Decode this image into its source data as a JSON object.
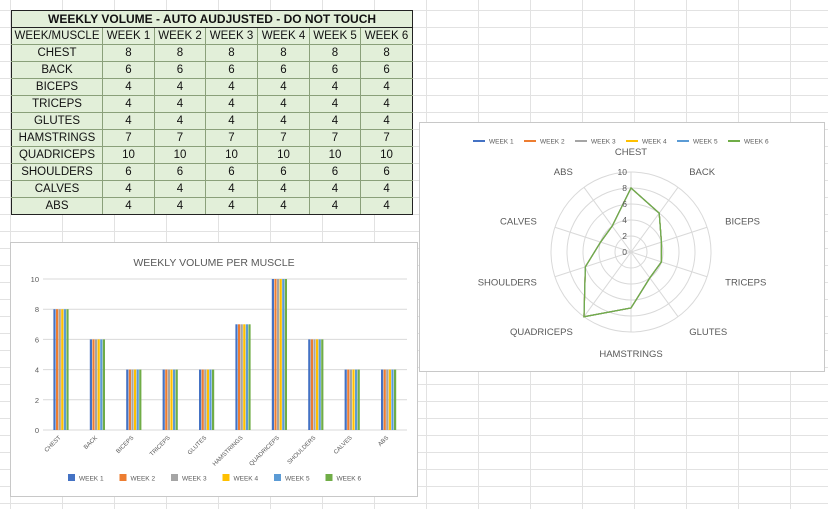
{
  "table": {
    "title": "WEEKLY VOLUME - AUTO AUDJUSTED - DO NOT TOUCH",
    "corner_header": "WEEK/MUSCLE",
    "columns": [
      "WEEK 1",
      "WEEK 2",
      "WEEK 3",
      "WEEK 4",
      "WEEK 5",
      "WEEK 6"
    ],
    "rows": [
      {
        "muscle": "CHEST",
        "values": [
          "8",
          "8",
          "8",
          "8",
          "8",
          "8"
        ]
      },
      {
        "muscle": "BACK",
        "values": [
          "6",
          "6",
          "6",
          "6",
          "6",
          "6"
        ]
      },
      {
        "muscle": "BICEPS",
        "values": [
          "4",
          "4",
          "4",
          "4",
          "4",
          "4"
        ]
      },
      {
        "muscle": "TRICEPS",
        "values": [
          "4",
          "4",
          "4",
          "4",
          "4",
          "4"
        ]
      },
      {
        "muscle": "GLUTES",
        "values": [
          "4",
          "4",
          "4",
          "4",
          "4",
          "4"
        ]
      },
      {
        "muscle": "HAMSTRINGS",
        "values": [
          "7",
          "7",
          "7",
          "7",
          "7",
          "7"
        ]
      },
      {
        "muscle": "QUADRICEPS",
        "values": [
          "10",
          "10",
          "10",
          "10",
          "10",
          "10"
        ]
      },
      {
        "muscle": "SHOULDERS",
        "values": [
          "6",
          "6",
          "6",
          "6",
          "6",
          "6"
        ]
      },
      {
        "muscle": "CALVES",
        "values": [
          "4",
          "4",
          "4",
          "4",
          "4",
          "4"
        ]
      },
      {
        "muscle": "ABS",
        "values": [
          "4",
          "4",
          "4",
          "4",
          "4",
          "4"
        ]
      }
    ]
  },
  "chart_data": [
    {
      "type": "bar",
      "title": "WEEKLY VOLUME PER MUSCLE",
      "categories": [
        "CHEST",
        "BACK",
        "BICEPS",
        "TRICEPS",
        "GLUTES",
        "HAMSTRINGS",
        "QUADRICEPS",
        "SHOULDERS",
        "CALVES",
        "ABS"
      ],
      "series": [
        {
          "name": "WEEK 1",
          "color": "#4472c4",
          "values": [
            8,
            6,
            4,
            4,
            4,
            7,
            10,
            6,
            4,
            4
          ]
        },
        {
          "name": "WEEK 2",
          "color": "#ed7d31",
          "values": [
            8,
            6,
            4,
            4,
            4,
            7,
            10,
            6,
            4,
            4
          ]
        },
        {
          "name": "WEEK 3",
          "color": "#a5a5a5",
          "values": [
            8,
            6,
            4,
            4,
            4,
            7,
            10,
            6,
            4,
            4
          ]
        },
        {
          "name": "WEEK 4",
          "color": "#ffc000",
          "values": [
            8,
            6,
            4,
            4,
            4,
            7,
            10,
            6,
            4,
            4
          ]
        },
        {
          "name": "WEEK 5",
          "color": "#5b9bd5",
          "values": [
            8,
            6,
            4,
            4,
            4,
            7,
            10,
            6,
            4,
            4
          ]
        },
        {
          "name": "WEEK 6",
          "color": "#70ad47",
          "values": [
            8,
            6,
            4,
            4,
            4,
            7,
            10,
            6,
            4,
            4
          ]
        }
      ],
      "ylim": [
        0,
        10
      ],
      "yticks": [
        0,
        2,
        4,
        6,
        8,
        10
      ],
      "grid": true,
      "legend": "bottom"
    },
    {
      "type": "radar",
      "categories": [
        "CHEST",
        "BACK",
        "BICEPS",
        "TRICEPS",
        "GLUTES",
        "HAMSTRINGS",
        "QUADRICEPS",
        "SHOULDERS",
        "CALVES",
        "ABS"
      ],
      "series": [
        {
          "name": "WEEK 1",
          "color": "#4472c4",
          "values": [
            8,
            6,
            4,
            4,
            4,
            7,
            10,
            6,
            4,
            4
          ]
        },
        {
          "name": "WEEK 2",
          "color": "#ed7d31",
          "values": [
            8,
            6,
            4,
            4,
            4,
            7,
            10,
            6,
            4,
            4
          ]
        },
        {
          "name": "WEEK 3",
          "color": "#a5a5a5",
          "values": [
            8,
            6,
            4,
            4,
            4,
            7,
            10,
            6,
            4,
            4
          ]
        },
        {
          "name": "WEEK 4",
          "color": "#ffc000",
          "values": [
            8,
            6,
            4,
            4,
            4,
            7,
            10,
            6,
            4,
            4
          ]
        },
        {
          "name": "WEEK 5",
          "color": "#5b9bd5",
          "values": [
            8,
            6,
            4,
            4,
            4,
            7,
            10,
            6,
            4,
            4
          ]
        },
        {
          "name": "WEEK 6",
          "color": "#70ad47",
          "values": [
            8,
            6,
            4,
            4,
            4,
            7,
            10,
            6,
            4,
            4
          ]
        }
      ],
      "rlim": [
        0,
        10
      ],
      "rticks": [
        0,
        2,
        4,
        6,
        8,
        10
      ],
      "grid": true,
      "legend": "top"
    }
  ]
}
